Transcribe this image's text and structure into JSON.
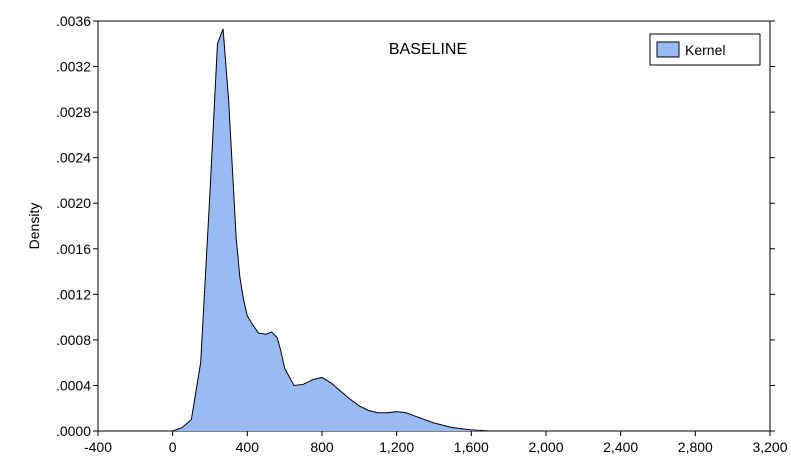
{
  "chart_data": {
    "type": "area",
    "title": "BASELINE",
    "xlabel": "",
    "ylabel": "Density",
    "xlim": [
      -400,
      3200
    ],
    "ylim": [
      0,
      0.0036
    ],
    "x_ticks": [
      -400,
      0,
      400,
      800,
      1200,
      1600,
      2000,
      2400,
      2800,
      3200
    ],
    "x_tick_labels": [
      "-400",
      "0",
      "400",
      "800",
      "1,200",
      "1,600",
      "2,000",
      "2,400",
      "2,800",
      "3,200"
    ],
    "y_ticks": [
      0,
      0.0004,
      0.0008,
      0.0012,
      0.0016,
      0.002,
      0.0024,
      0.0028,
      0.0032,
      0.0036
    ],
    "y_tick_labels": [
      ".0000",
      ".0004",
      ".0008",
      ".0012",
      ".0016",
      ".0020",
      ".0024",
      ".0028",
      ".0032",
      ".0036"
    ],
    "grid": false,
    "legend_position": "top-right",
    "fill_color": "#99bbf5",
    "line_color": "#000000",
    "series": [
      {
        "name": "Kernel",
        "x": [
          0,
          50,
          100,
          150,
          200,
          240,
          270,
          300,
          320,
          340,
          360,
          380,
          400,
          430,
          460,
          500,
          530,
          560,
          580,
          600,
          650,
          700,
          750,
          800,
          850,
          900,
          950,
          1000,
          1050,
          1100,
          1150,
          1200,
          1250,
          1300,
          1400,
          1500,
          1600,
          1700,
          1800,
          1900
        ],
        "values": [
          0.0,
          3e-05,
          0.0001,
          0.0006,
          0.0021,
          0.0034,
          0.00353,
          0.0029,
          0.0023,
          0.0017,
          0.00135,
          0.00115,
          0.00101,
          0.00093,
          0.00086,
          0.00085,
          0.00087,
          0.00082,
          0.0007,
          0.00055,
          0.0004,
          0.00041,
          0.00045,
          0.00047,
          0.00042,
          0.00035,
          0.00028,
          0.00022,
          0.00018,
          0.00016,
          0.00016,
          0.00017,
          0.00016,
          0.00013,
          7e-05,
          3e-05,
          1e-05,
          0.0,
          0.0,
          0.0
        ]
      }
    ]
  }
}
